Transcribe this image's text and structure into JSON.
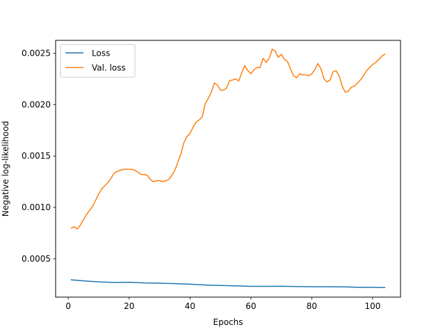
{
  "chart_data": {
    "type": "line",
    "title": "",
    "xlabel": "Epochs",
    "ylabel": "Negative log-likelihood",
    "xlim": [
      -4.15,
      109.15
    ],
    "ylim": [
      0.000127,
      0.002625
    ],
    "xticks": [
      0,
      20,
      40,
      60,
      80,
      100
    ],
    "yticks": [
      0.0005,
      0.001,
      0.0015,
      0.002,
      0.0025
    ],
    "ytick_labels": [
      "0.0005",
      "0.0010",
      "0.0015",
      "0.0020",
      "0.0025"
    ],
    "grid": false,
    "legend": "upper-left",
    "series": [
      {
        "name": "Loss",
        "color": "#1f77b4",
        "x": [
          1,
          5,
          10,
          15,
          20,
          25,
          30,
          35,
          40,
          45,
          50,
          55,
          60,
          65,
          70,
          75,
          80,
          85,
          90,
          95,
          100,
          104
        ],
        "values": [
          0.000295,
          0.000285,
          0.000275,
          0.00027,
          0.000272,
          0.000265,
          0.000262,
          0.000258,
          0.000253,
          0.000245,
          0.00024,
          0.000237,
          0.000232,
          0.000232,
          0.000233,
          0.00023,
          0.000228,
          0.000228,
          0.000227,
          0.000223,
          0.000222,
          0.00022
        ]
      },
      {
        "name": "Val. loss",
        "color": "#ff7f0e",
        "x": [
          1,
          2,
          3,
          4,
          5,
          6,
          7,
          8,
          9,
          10,
          11,
          12,
          13,
          14,
          15,
          16,
          17,
          18,
          19,
          20,
          21,
          22,
          23,
          24,
          25,
          26,
          27,
          28,
          29,
          30,
          31,
          32,
          33,
          34,
          35,
          36,
          37,
          38,
          39,
          40,
          41,
          42,
          43,
          44,
          45,
          46,
          47,
          48,
          49,
          50,
          51,
          52,
          53,
          54,
          55,
          56,
          57,
          58,
          59,
          60,
          61,
          62,
          63,
          64,
          65,
          66,
          67,
          68,
          69,
          70,
          71,
          72,
          73,
          74,
          75,
          76,
          77,
          78,
          79,
          80,
          81,
          82,
          83,
          84,
          85,
          86,
          87,
          88,
          89,
          90,
          91,
          92,
          93,
          94,
          95,
          96,
          97,
          98,
          99,
          100,
          101,
          102,
          103,
          104
        ],
        "values": [
          0.0008,
          0.00081,
          0.00079,
          0.00083,
          0.00088,
          0.00093,
          0.00097,
          0.00101,
          0.00107,
          0.00113,
          0.00118,
          0.00121,
          0.00124,
          0.00128,
          0.00133,
          0.00135,
          0.00136,
          0.00137,
          0.00137,
          0.00137,
          0.00137,
          0.00136,
          0.00134,
          0.00132,
          0.00132,
          0.00131,
          0.00127,
          0.00125,
          0.00126,
          0.00126,
          0.00125,
          0.00126,
          0.00127,
          0.00131,
          0.00136,
          0.00144,
          0.00152,
          0.00163,
          0.00169,
          0.00172,
          0.00178,
          0.00183,
          0.00185,
          0.00188,
          0.00201,
          0.00206,
          0.00212,
          0.00221,
          0.00219,
          0.00214,
          0.00214,
          0.00216,
          0.00223,
          0.00224,
          0.00225,
          0.00223,
          0.00231,
          0.00238,
          0.00233,
          0.0023,
          0.00234,
          0.00236,
          0.00236,
          0.00245,
          0.00241,
          0.00245,
          0.00254,
          0.00252,
          0.00246,
          0.00249,
          0.00244,
          0.00242,
          0.00235,
          0.00228,
          0.00226,
          0.0023,
          0.00229,
          0.00229,
          0.00228,
          0.0023,
          0.00234,
          0.0024,
          0.00235,
          0.00225,
          0.00222,
          0.00224,
          0.00232,
          0.00233,
          0.00228,
          0.00218,
          0.00212,
          0.00213,
          0.00217,
          0.00218,
          0.00221,
          0.00224,
          0.00228,
          0.00233,
          0.00236,
          0.00239,
          0.00241,
          0.00244,
          0.00247,
          0.00249
        ]
      }
    ]
  }
}
